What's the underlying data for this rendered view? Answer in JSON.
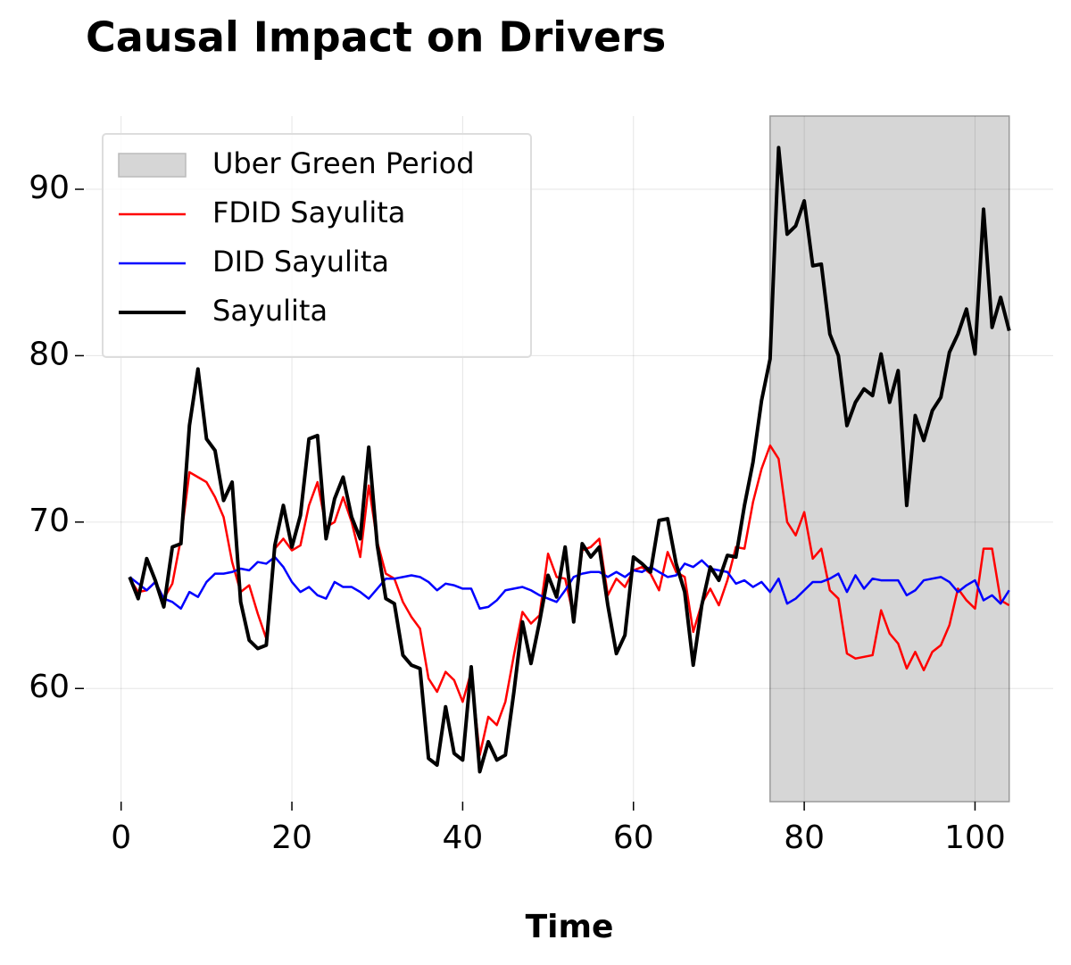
{
  "chart_data": {
    "type": "line",
    "title": "Causal Impact on Drivers",
    "xlabel": "Time",
    "x": [
      1,
      2,
      3,
      4,
      5,
      6,
      7,
      8,
      9,
      10,
      11,
      12,
      13,
      14,
      15,
      16,
      17,
      18,
      19,
      20,
      21,
      22,
      23,
      24,
      25,
      26,
      27,
      28,
      29,
      30,
      31,
      32,
      33,
      34,
      35,
      36,
      37,
      38,
      39,
      40,
      41,
      42,
      43,
      44,
      45,
      46,
      47,
      48,
      49,
      50,
      51,
      52,
      53,
      54,
      55,
      56,
      57,
      58,
      59,
      60,
      61,
      62,
      63,
      64,
      65,
      66,
      67,
      68,
      69,
      70,
      71,
      72,
      73,
      74,
      75,
      76,
      77,
      78,
      79,
      80,
      81,
      82,
      83,
      84,
      85,
      86,
      87,
      88,
      89,
      90,
      91,
      92,
      93,
      94,
      95,
      96,
      97,
      98,
      99,
      100,
      101,
      102,
      103,
      104
    ],
    "spans": [
      {
        "name": "Uber Green Period",
        "start": 76,
        "end": 104,
        "color": "#d6d6d6"
      }
    ],
    "series": [
      {
        "name": "FDID Sayulita",
        "color": "#ff0000",
        "linewidth": 2.5,
        "values": [
          66.6,
          65.8,
          65.9,
          66.4,
          65.4,
          66.3,
          69.0,
          73.0,
          72.7,
          72.4,
          71.5,
          70.3,
          67.6,
          65.8,
          66.2,
          64.5,
          63.0,
          68.4,
          69.0,
          68.3,
          68.6,
          71.0,
          72.4,
          69.7,
          70.0,
          71.5,
          70.0,
          67.9,
          72.2,
          68.8,
          66.9,
          66.6,
          65.2,
          64.3,
          63.6,
          60.6,
          59.8,
          61.0,
          60.5,
          59.2,
          61.0,
          56.0,
          58.3,
          57.8,
          59.2,
          62.0,
          64.6,
          63.9,
          64.4,
          68.1,
          66.7,
          66.6,
          64.3,
          68.3,
          68.5,
          69.0,
          65.6,
          66.6,
          66.1,
          67.1,
          67.3,
          66.9,
          65.9,
          68.2,
          67.0,
          66.7,
          63.4,
          65.1,
          66.0,
          65.0,
          66.5,
          68.5,
          68.4,
          71.2,
          73.2,
          74.6,
          73.8,
          70.0,
          69.2,
          70.6,
          67.8,
          68.4,
          65.9,
          65.4,
          62.1,
          61.8,
          61.9,
          62.0,
          64.7,
          63.3,
          62.7,
          61.2,
          62.2,
          61.1,
          62.2,
          62.6,
          63.8,
          66.0,
          65.3,
          64.8,
          68.4,
          68.4,
          65.3,
          65.0
        ]
      },
      {
        "name": "DID Sayulita",
        "color": "#0000ff",
        "linewidth": 2.5,
        "values": [
          66.7,
          66.3,
          65.9,
          66.4,
          65.4,
          65.2,
          64.8,
          65.8,
          65.5,
          66.4,
          66.9,
          66.9,
          67.0,
          67.2,
          67.1,
          67.6,
          67.5,
          67.9,
          67.3,
          66.4,
          65.8,
          66.1,
          65.6,
          65.4,
          66.4,
          66.1,
          66.1,
          65.8,
          65.4,
          66.0,
          66.6,
          66.6,
          66.7,
          66.8,
          66.7,
          66.4,
          65.9,
          66.3,
          66.2,
          66.0,
          66.0,
          64.8,
          64.9,
          65.3,
          65.9,
          66.0,
          66.1,
          65.9,
          65.6,
          65.4,
          65.2,
          65.9,
          66.7,
          66.9,
          67.0,
          67.0,
          66.7,
          67.0,
          66.7,
          67.1,
          67.0,
          67.3,
          67.0,
          66.7,
          66.8,
          67.5,
          67.3,
          67.7,
          67.2,
          67.1,
          67.0,
          66.3,
          66.5,
          66.1,
          66.4,
          65.8,
          66.6,
          65.1,
          65.4,
          65.9,
          66.4,
          66.4,
          66.6,
          66.9,
          65.8,
          66.8,
          66.0,
          66.6,
          66.5,
          66.5,
          66.5,
          65.6,
          65.9,
          66.5,
          66.6,
          66.7,
          66.4,
          65.8,
          66.2,
          66.5,
          65.3,
          65.6,
          65.1,
          65.9
        ]
      },
      {
        "name": "Sayulita",
        "color": "#000000",
        "linewidth": 4,
        "values": [
          66.7,
          65.4,
          67.8,
          66.5,
          64.9,
          68.5,
          68.7,
          75.8,
          79.2,
          75.0,
          74.3,
          71.3,
          72.4,
          65.2,
          62.9,
          62.4,
          62.6,
          68.6,
          71.0,
          68.5,
          70.4,
          75.0,
          75.2,
          69.0,
          71.4,
          72.7,
          70.3,
          69.0,
          74.5,
          68.6,
          65.4,
          65.1,
          62.0,
          61.4,
          61.2,
          55.8,
          55.4,
          58.9,
          56.1,
          55.7,
          61.3,
          55.0,
          56.8,
          55.7,
          56.0,
          59.8,
          64.0,
          61.5,
          64.0,
          66.8,
          65.5,
          68.5,
          64.0,
          68.7,
          67.9,
          68.5,
          65.0,
          62.1,
          63.2,
          67.9,
          67.5,
          67.0,
          70.1,
          70.2,
          67.5,
          65.8,
          61.4,
          65.0,
          67.3,
          66.5,
          68.0,
          67.9,
          71.0,
          73.6,
          77.3,
          79.8,
          92.5,
          87.3,
          87.8,
          89.3,
          85.4,
          85.5,
          81.3,
          80.0,
          75.8,
          77.2,
          78.0,
          77.6,
          80.1,
          77.2,
          79.1,
          71.0,
          76.4,
          74.9,
          76.7,
          77.5,
          80.2,
          81.3,
          82.8,
          80.1,
          88.8,
          81.7,
          83.5,
          81.5
        ]
      }
    ],
    "xlim": [
      -4.15,
      109.15
    ],
    "ylim": [
      53.2,
      94.4
    ],
    "xticks": [
      0,
      20,
      40,
      60,
      80,
      100
    ],
    "yticks": [
      60,
      70,
      80,
      90
    ],
    "grid": true,
    "legend": "upper-left"
  }
}
